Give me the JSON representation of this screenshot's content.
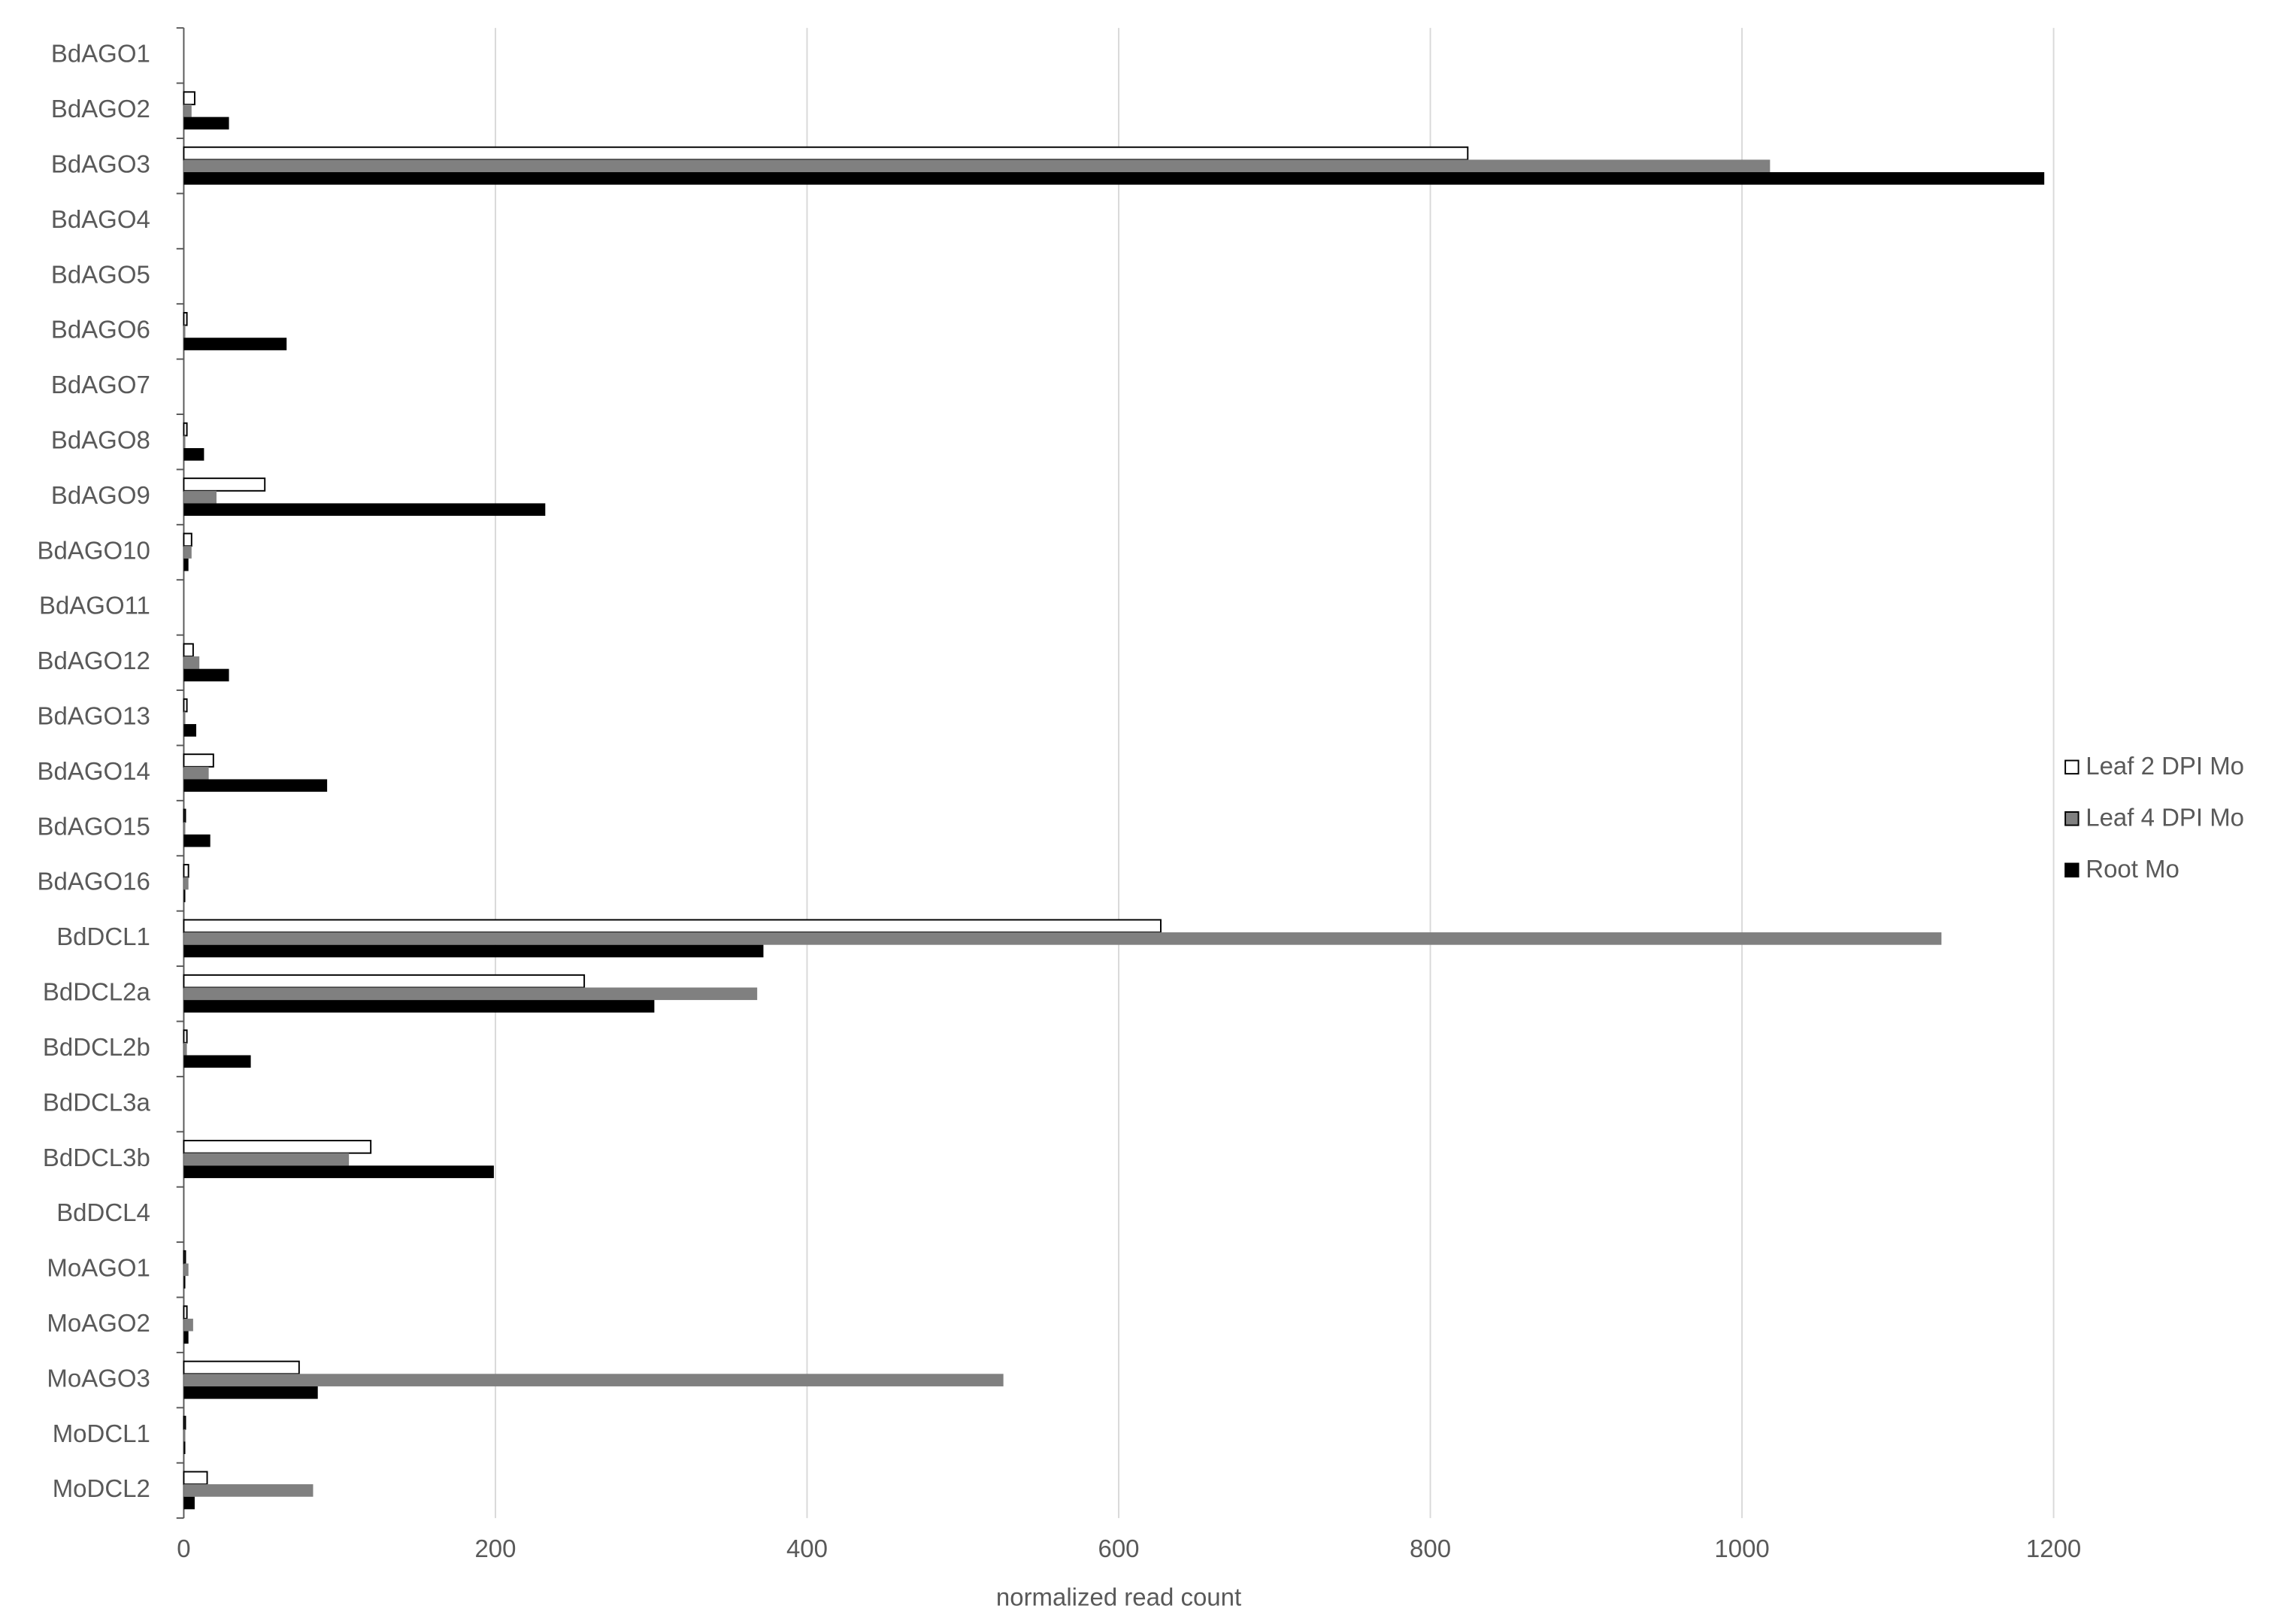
{
  "chart_data": {
    "type": "barh",
    "x_label": "normalized read count",
    "categories": [
      "BdAGO1",
      "BdAGO2",
      "BdAGO3",
      "BdAGO4",
      "BdAGO5",
      "BdAGO6",
      "BdAGO7",
      "BdAGO8",
      "BdAGO9",
      "BdAGO10",
      "BdAGO11",
      "BdAGO12",
      "BdAGO13",
      "BdAGO14",
      "BdAGO15",
      "BdAGO16",
      "BdDCL1",
      "BdDCL2a",
      "BdDCL2b",
      "BdDCL3a",
      "BdDCL3b",
      "BdDCL4",
      "MoAGO1",
      "MoAGO2",
      "MoAGO3",
      "MoDCL1",
      "MoDCL2"
    ],
    "series": [
      {
        "name": "Leaf 2 DPI Mo",
        "color": "#ffffff",
        "values": [
          0,
          7,
          824,
          0,
          0,
          2,
          0,
          2,
          52,
          5,
          0,
          6,
          2,
          19,
          1,
          3,
          627,
          257,
          2,
          0,
          120,
          0,
          1,
          2,
          74,
          1,
          15
        ]
      },
      {
        "name": "Leaf 4 DPI Mo",
        "color": "#808080",
        "values": [
          0,
          5,
          1018,
          0,
          0,
          1,
          0,
          1,
          21,
          5,
          0,
          10,
          1,
          16,
          1,
          3,
          1128,
          368,
          2,
          0,
          106,
          0,
          3,
          6,
          526,
          1,
          83
        ]
      },
      {
        "name": "Root Mo",
        "color": "#000000",
        "values": [
          0,
          29,
          1194,
          0,
          0,
          66,
          0,
          13,
          232,
          3,
          0,
          29,
          8,
          92,
          17,
          1,
          372,
          302,
          43,
          0,
          199,
          0,
          1,
          3,
          86,
          1,
          7
        ]
      }
    ],
    "xlim": [
      0,
      1200
    ],
    "xticks": [
      0,
      200,
      400,
      600,
      800,
      1000,
      1200
    ],
    "grid": true,
    "legend": "right"
  }
}
